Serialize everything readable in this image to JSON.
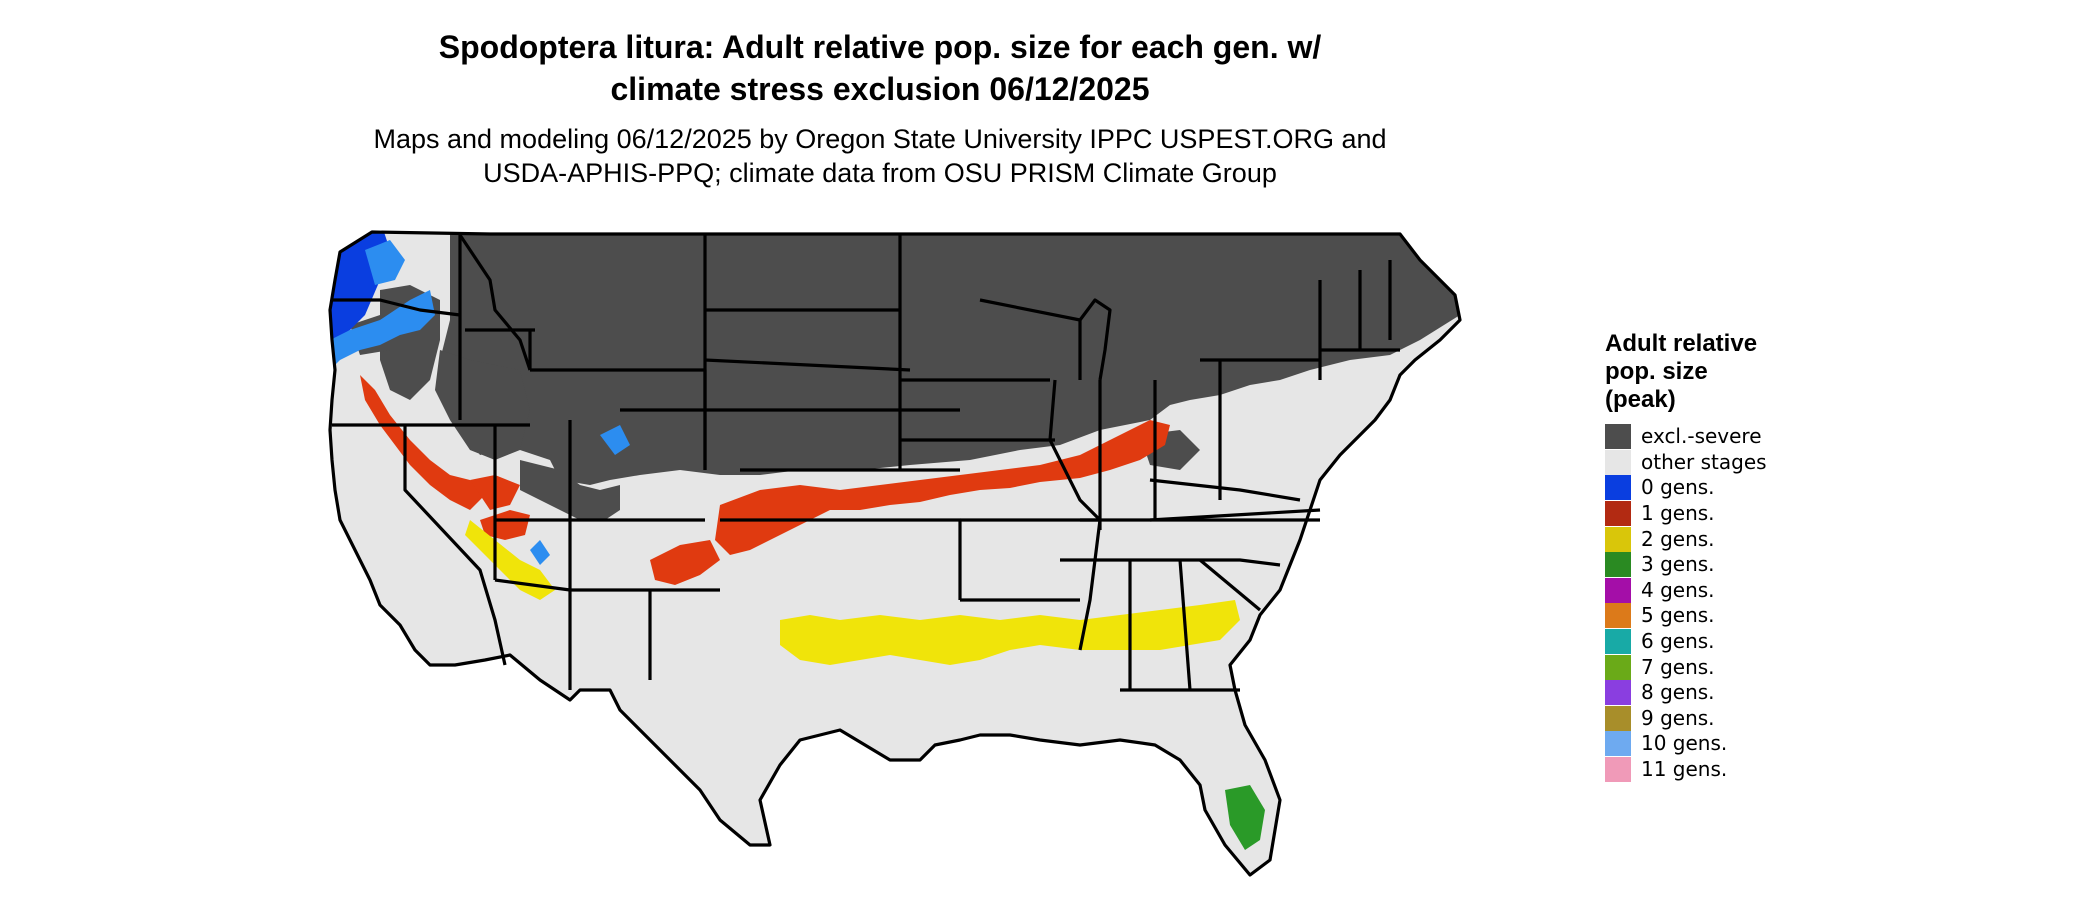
{
  "title_line1": "Spodoptera litura: Adult relative pop. size for each gen. w/",
  "title_line2": "climate stress exclusion 06/12/2025",
  "subtitle_line1": "Maps and modeling 06/12/2025 by Oregon State University IPPC USPEST.ORG and",
  "subtitle_line2": "USDA-APHIS-PPQ; climate data from OSU PRISM Climate Group",
  "legend": {
    "title_line1": "Adult relative",
    "title_line2": "pop. size",
    "title_line3": "(peak)",
    "items": [
      {
        "label": "excl.-severe",
        "color": "#4d4d4d"
      },
      {
        "label": "other stages",
        "color": "#e6e6e6"
      },
      {
        "label": "0 gens.",
        "color": "#0a3ee0"
      },
      {
        "label": "1 gens.",
        "color": "#b22a12"
      },
      {
        "label": "2 gens.",
        "color": "#d9c60a"
      },
      {
        "label": "3 gens.",
        "color": "#2a8a22"
      },
      {
        "label": "4 gens.",
        "color": "#a40ea8"
      },
      {
        "label": "5 gens.",
        "color": "#dc7a1a"
      },
      {
        "label": "6 gens.",
        "color": "#18aaa6"
      },
      {
        "label": "7 gens.",
        "color": "#6aaa18"
      },
      {
        "label": "8 gens.",
        "color": "#8a3ee0"
      },
      {
        "label": "9 gens.",
        "color": "#a88e2a"
      },
      {
        "label": "10 gens.",
        "color": "#6eaaf0"
      },
      {
        "label": "11 gens.",
        "color": "#f09ab8"
      }
    ]
  },
  "map_colors": {
    "severe": "#4d4d4d",
    "other": "#e6e6e6",
    "zero": "#0a3ee0",
    "zero_light": "#2c8df0",
    "one": "#e03a10",
    "two": "#f0e40a",
    "three": "#2a9a28",
    "border": "#000000"
  }
}
